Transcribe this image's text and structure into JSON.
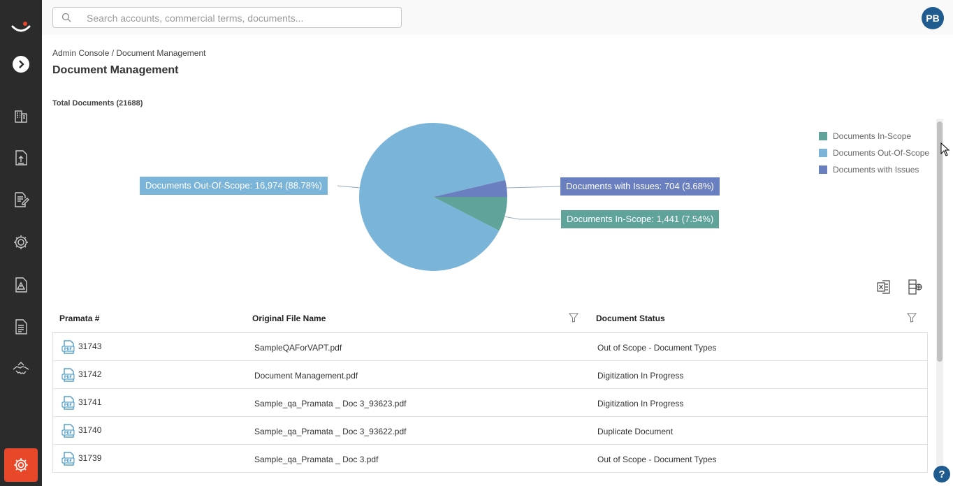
{
  "header": {
    "search_placeholder": "Search accounts, commercial terms, documents...",
    "avatar_initials": "PB"
  },
  "breadcrumb": "Admin Console / Document Management",
  "page_title": "Document Management",
  "total_label": "Total Documents (21688)",
  "chart_data": {
    "type": "pie",
    "title": "",
    "slices": [
      {
        "name": "Documents Out-Of-Scope",
        "value": 16974,
        "percent": 88.78,
        "color": "#7ab4d8"
      },
      {
        "name": "Documents with Issues",
        "value": 704,
        "percent": 3.68,
        "color": "#6a7fbf"
      },
      {
        "name": "Documents In-Scope",
        "value": 1441,
        "percent": 7.54,
        "color": "#5fa39a"
      }
    ],
    "callouts": {
      "out_of_scope": "Documents Out-Of-Scope: 16,974 (88.78%)",
      "issues": "Documents with Issues: 704 (3.68%)",
      "in_scope": "Documents In-Scope: 1,441 (7.54%)"
    },
    "legend": [
      {
        "label": "Documents In-Scope",
        "color": "#5fa39a"
      },
      {
        "label": "Documents Out-Of-Scope",
        "color": "#7ab4d8"
      },
      {
        "label": "Documents with Issues",
        "color": "#6a7fbf"
      }
    ],
    "legend_position": "top-right"
  },
  "table": {
    "columns": {
      "num": "Pramata #",
      "file": "Original File Name",
      "status": "Document Status"
    },
    "rows": [
      {
        "num": "31743",
        "file": "SampleQAForVAPT.pdf",
        "status": "Out of Scope - Document Types"
      },
      {
        "num": "31742",
        "file": "Document Management.pdf",
        "status": "Digitization In Progress"
      },
      {
        "num": "31741",
        "file": "Sample_qa_Pramata _ Doc 3_93623.pdf",
        "status": "Digitization In Progress"
      },
      {
        "num": "31740",
        "file": "Sample_qa_Pramata _ Doc 3_93622.pdf",
        "status": "Duplicate Document"
      },
      {
        "num": "31739",
        "file": "Sample_qa_Pramata _ Doc 3.pdf",
        "status": "Out of Scope - Document Types"
      }
    ]
  },
  "icons": {
    "sidebar": [
      "logo-icon",
      "expand-chevron-icon",
      "building-icon",
      "upload-document-icon",
      "edit-document-icon",
      "settings-gear-icon",
      "alert-document-icon",
      "report-document-icon",
      "handshake-icon",
      "admin-gear-icon"
    ],
    "toolbar": [
      "excel-export-icon",
      "column-settings-icon"
    ]
  },
  "help_label": "?"
}
